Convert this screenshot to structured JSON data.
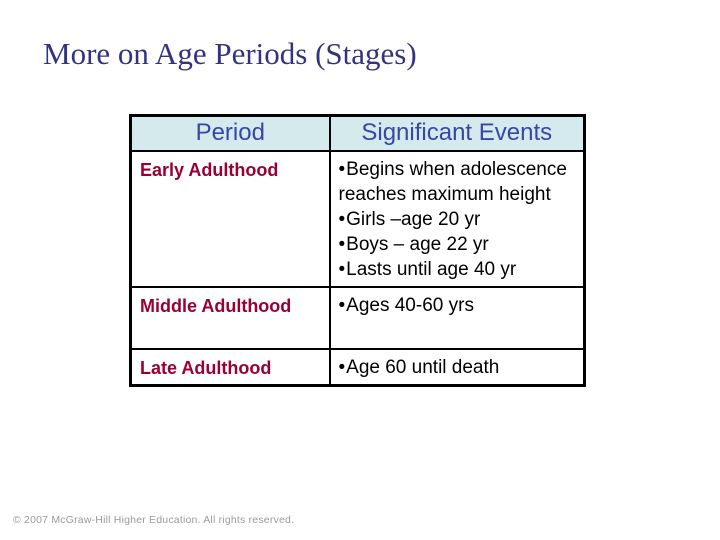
{
  "slide": {
    "title": "More on Age Periods (Stages)",
    "footer": "© 2007 McGraw-Hill Higher Education. All rights reserved."
  },
  "colors": {
    "title_text": "#333380",
    "table_header_bg": "#d5eaec",
    "table_header_text": "#3846a5",
    "period_label_text": "#990033",
    "body_text": "#000000",
    "table_border": "#000000",
    "footer_text": "#9a9a9a",
    "background": "#ffffff"
  },
  "table": {
    "bullet_char": "•",
    "headers": [
      "Period",
      "Significant Events"
    ],
    "rows": [
      {
        "period": "Early Adulthood",
        "events": [
          "Begins when adolescence reaches maximum height",
          "Girls –age 20 yr",
          "Boys – age 22 yr",
          "Lasts until age 40 yr"
        ]
      },
      {
        "period": "Middle Adulthood",
        "events": [
          "Ages 40-60 yrs"
        ]
      },
      {
        "period": "Late Adulthood",
        "events": [
          "Age 60 until death"
        ]
      }
    ]
  }
}
